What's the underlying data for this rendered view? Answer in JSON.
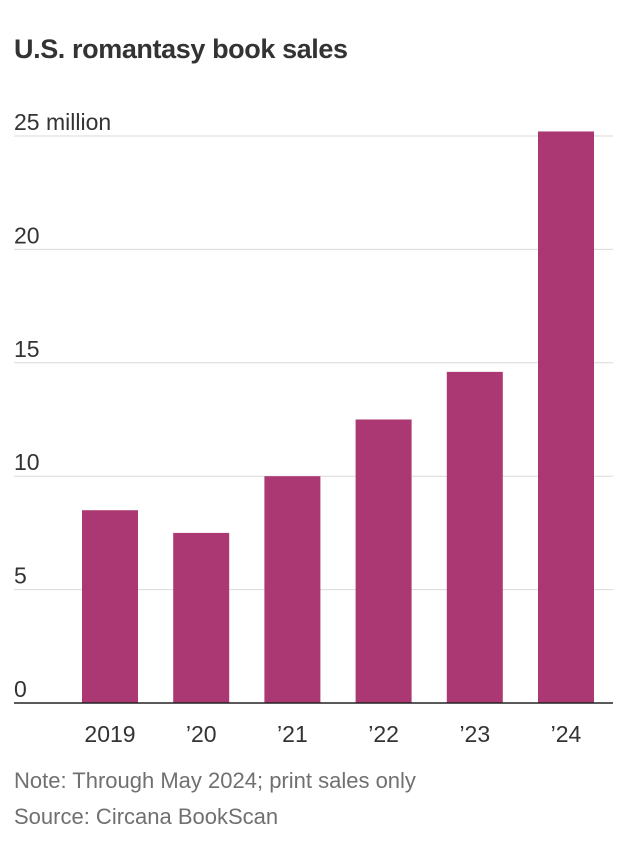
{
  "chart_data": {
    "type": "bar",
    "title": "U.S. romantasy book sales",
    "categories": [
      "2019",
      "’20",
      "’21",
      "’22",
      "’23",
      "’24"
    ],
    "values": [
      8.5,
      7.5,
      10.0,
      12.5,
      14.6,
      25.2
    ],
    "ylim": [
      0,
      25
    ],
    "y_ticks": [
      0,
      5,
      10,
      15,
      20,
      25
    ],
    "y_tick_labels": [
      "0",
      "5",
      "10",
      "15",
      "20",
      "25 million"
    ],
    "xlabel": "",
    "ylabel": "",
    "grid": true,
    "colors": {
      "bar": "#ab3872"
    }
  },
  "footer": {
    "note": "Note: Through May 2024; print sales only",
    "source": "Source: Circana BookScan"
  }
}
